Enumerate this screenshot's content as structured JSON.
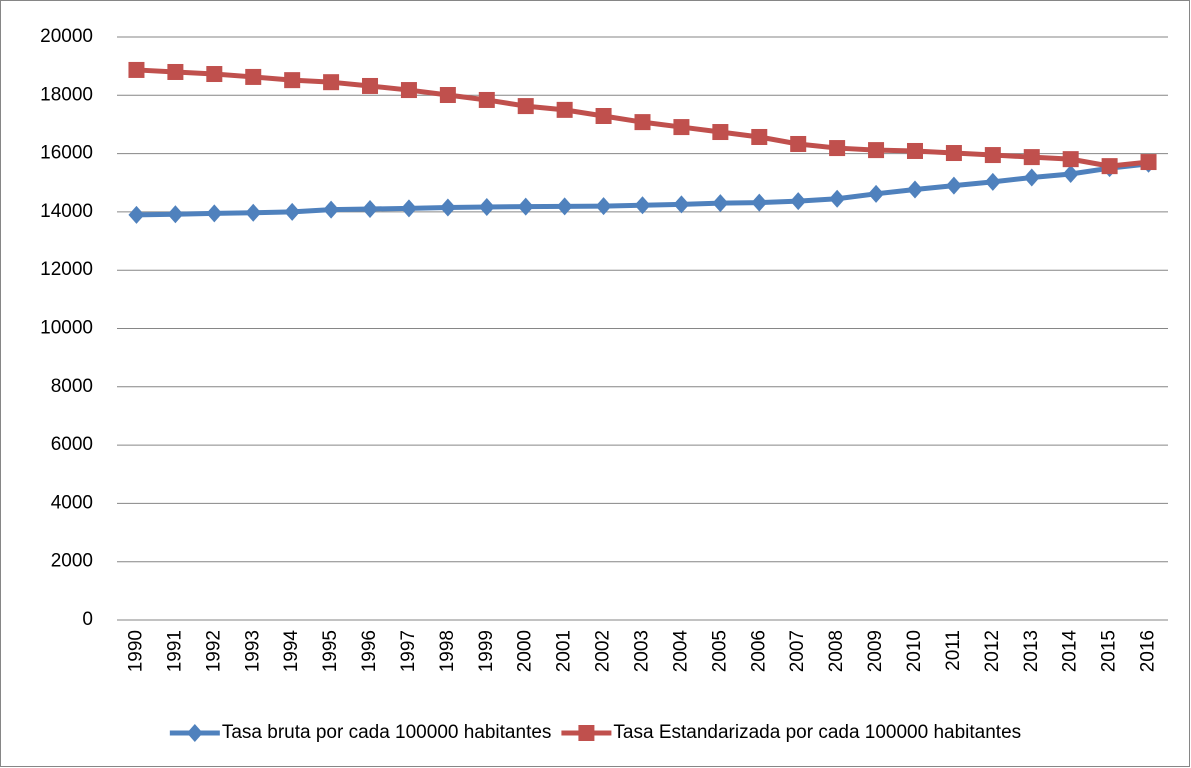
{
  "chart_data": {
    "type": "line",
    "categories": [
      "1990",
      "1991",
      "1992",
      "1993",
      "1994",
      "1995",
      "1996",
      "1997",
      "1998",
      "1999",
      "2000",
      "2001",
      "2002",
      "2003",
      "2004",
      "2005",
      "2006",
      "2007",
      "2008",
      "2009",
      "2010",
      "2011",
      "2012",
      "2013",
      "2014",
      "2015",
      "2016"
    ],
    "series": [
      {
        "name": "Tasa bruta por cada 100000 habitantes",
        "color": "#4f81bd",
        "marker": "diamond",
        "values": [
          13900,
          13920,
          13950,
          13970,
          14000,
          14080,
          14100,
          14120,
          14150,
          14170,
          14180,
          14190,
          14200,
          14230,
          14260,
          14300,
          14320,
          14370,
          14450,
          14620,
          14770,
          14900,
          15030,
          15180,
          15300,
          15500,
          15650
        ]
      },
      {
        "name": "Tasa Estandarizada por cada 100000 habitantes",
        "color": "#c0504d",
        "marker": "square",
        "values": [
          18870,
          18800,
          18730,
          18630,
          18520,
          18450,
          18320,
          18180,
          18010,
          17840,
          17630,
          17500,
          17290,
          17080,
          16910,
          16740,
          16570,
          16330,
          16190,
          16120,
          16090,
          16020,
          15950,
          15880,
          15810,
          15570,
          15710
        ]
      }
    ],
    "ylim": [
      0,
      20000
    ],
    "yticks": [
      0,
      2000,
      4000,
      6000,
      8000,
      10000,
      12000,
      14000,
      16000,
      18000,
      20000
    ],
    "grid": true,
    "legend": "bottom"
  }
}
